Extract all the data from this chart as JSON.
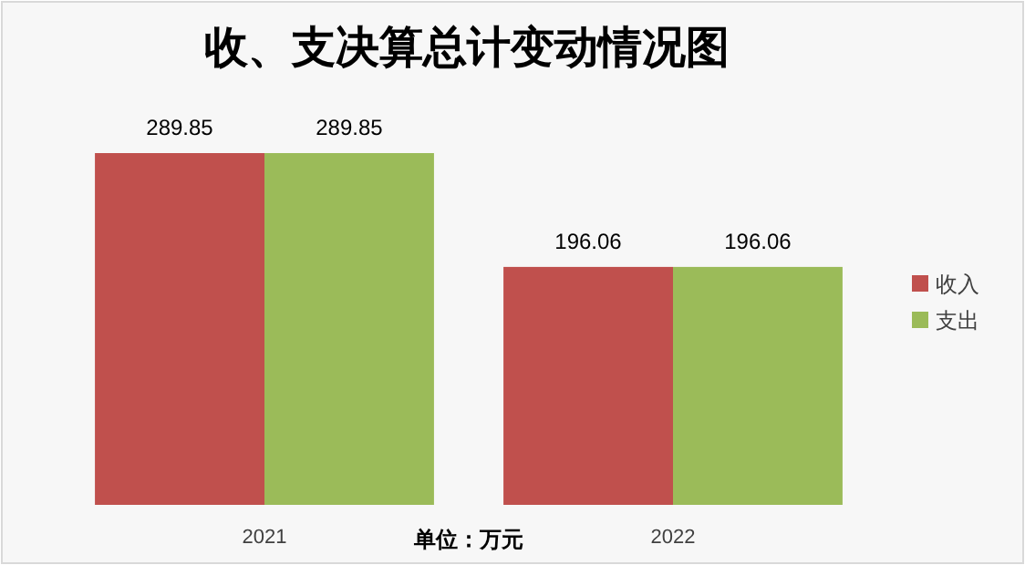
{
  "chart_data": {
    "type": "bar",
    "title": "收、支决算总计变动情况图",
    "categories": [
      "2021",
      "2022"
    ],
    "series": [
      {
        "name": "收入",
        "color": "#c0504d",
        "values": [
          289.85,
          196.06
        ]
      },
      {
        "name": "支出",
        "color": "#9bbb59",
        "values": [
          289.85,
          196.06
        ]
      }
    ],
    "data_labels": true,
    "legend": "right",
    "annotations": [
      "单位：万元"
    ]
  }
}
